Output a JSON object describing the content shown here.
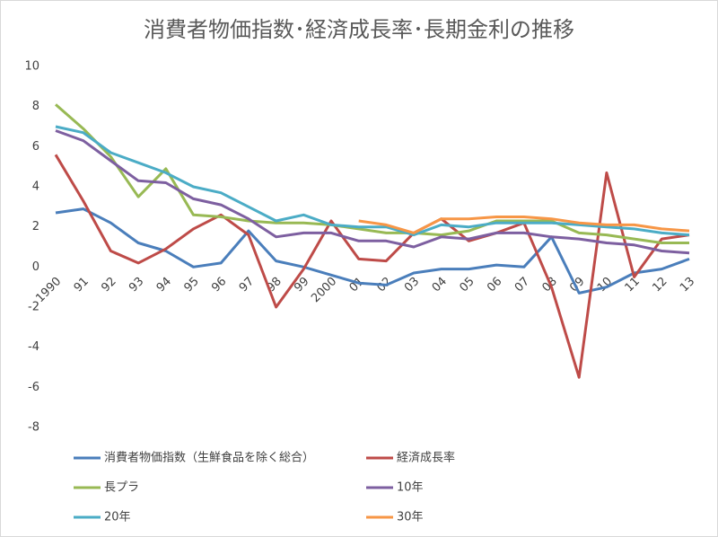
{
  "chart_data": {
    "type": "line",
    "title": "消費者物価指数･経済成長率･長期金利の推移",
    "categories": [
      "1990",
      "91",
      "92",
      "93",
      "94",
      "95",
      "96",
      "97",
      "98",
      "99",
      "2000",
      "01",
      "02",
      "03",
      "04",
      "05",
      "06",
      "07",
      "08",
      "09",
      "10",
      "11",
      "12",
      "13"
    ],
    "ylim": [
      -8,
      10
    ],
    "yticks": [
      -8,
      -6,
      -4,
      -2,
      0,
      2,
      4,
      6,
      8,
      10
    ],
    "grid": false,
    "series": [
      {
        "name": "消費者物価指数（生鮮食品を除く総合）",
        "color": "#4a7ebb",
        "values": [
          2.7,
          2.9,
          2.2,
          1.2,
          0.8,
          0.0,
          0.2,
          1.8,
          0.3,
          0.0,
          -0.4,
          -0.8,
          -0.9,
          -0.3,
          -0.1,
          -0.1,
          0.1,
          0.0,
          1.5,
          -1.3,
          -1.0,
          -0.3,
          -0.1,
          0.4
        ]
      },
      {
        "name": "経済成長率",
        "color": "#be4b48",
        "values": [
          5.6,
          3.3,
          0.8,
          0.2,
          0.9,
          1.9,
          2.6,
          1.6,
          -2.0,
          -0.1,
          2.3,
          0.4,
          0.3,
          1.7,
          2.4,
          1.3,
          1.7,
          2.2,
          -1.0,
          -5.5,
          4.7,
          -0.5,
          1.4,
          1.6
        ]
      },
      {
        "name": "長プラ",
        "color": "#98b954",
        "values": [
          8.1,
          6.9,
          5.5,
          3.5,
          4.9,
          2.6,
          2.5,
          2.3,
          2.2,
          2.2,
          2.1,
          1.9,
          1.7,
          1.7,
          1.6,
          1.8,
          2.3,
          2.3,
          2.3,
          1.7,
          1.6,
          1.4,
          1.2,
          1.2
        ]
      },
      {
        "name": "10年",
        "color": "#7d5fa0",
        "values": [
          6.8,
          6.3,
          5.3,
          4.3,
          4.2,
          3.4,
          3.1,
          2.4,
          1.5,
          1.7,
          1.7,
          1.3,
          1.3,
          1.0,
          1.5,
          1.4,
          1.7,
          1.7,
          1.5,
          1.4,
          1.2,
          1.1,
          0.8,
          0.7
        ]
      },
      {
        "name": "20年",
        "color": "#4bacc6",
        "values": [
          7.0,
          6.7,
          5.7,
          5.2,
          4.7,
          4.0,
          3.7,
          3.0,
          2.3,
          2.6,
          2.1,
          2.0,
          2.0,
          1.6,
          2.1,
          2.0,
          2.2,
          2.2,
          2.2,
          2.1,
          2.0,
          1.9,
          1.7,
          1.6
        ]
      },
      {
        "name": "30年",
        "color": "#f79646",
        "values": [
          null,
          null,
          null,
          null,
          null,
          null,
          null,
          null,
          null,
          null,
          null,
          2.3,
          2.1,
          1.7,
          2.4,
          2.4,
          2.5,
          2.5,
          2.4,
          2.2,
          2.1,
          2.1,
          1.9,
          1.8
        ]
      }
    ]
  }
}
